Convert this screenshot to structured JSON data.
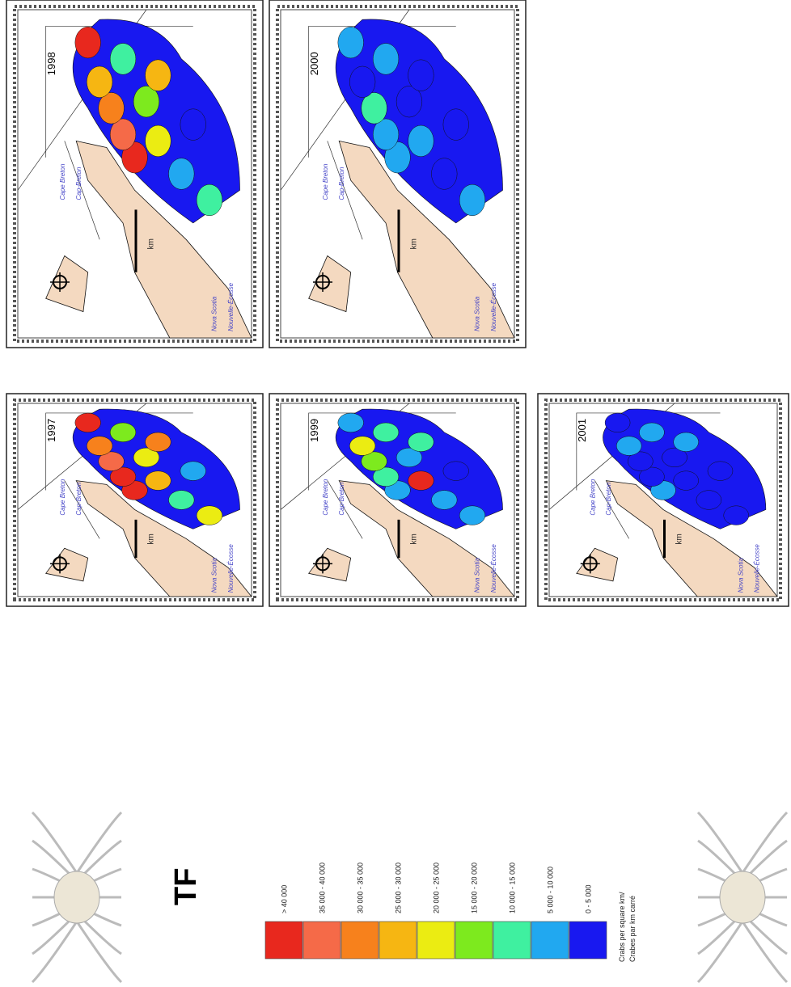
{
  "title": "TF",
  "panels": [
    {
      "year": "1997"
    },
    {
      "year": "1998"
    },
    {
      "year": "1999"
    },
    {
      "year": "2000"
    },
    {
      "year": "2001"
    }
  ],
  "map_labels": {
    "nova_scotia": "Nova Scotia",
    "nouvelle_ecosse": "Nouvelle-Écosse",
    "cape_breton": "Cape Breton",
    "cap_breton": "Cap-Breton",
    "km": "km"
  },
  "legend": {
    "classes": [
      {
        "label": "> 40 000",
        "color": "#e8281e"
      },
      {
        "label": "35 000 - 40 000",
        "color": "#f56a48"
      },
      {
        "label": "30 000 - 35 000",
        "color": "#f7811c"
      },
      {
        "label": "25 000 - 30 000",
        "color": "#f6b612"
      },
      {
        "label": "20 000 - 25 000",
        "color": "#ebec12"
      },
      {
        "label": "15 000 - 20 000",
        "color": "#7dea1e"
      },
      {
        "label": "10 000 - 15 000",
        "color": "#3ff0a0"
      },
      {
        "label": "5 000 - 10 000",
        "color": "#21a8f0"
      },
      {
        "label": "0 - 5 000",
        "color": "#1818f0"
      }
    ],
    "units": "Crabs per square km/",
    "units_fr": "Crabes par km carré"
  }
}
